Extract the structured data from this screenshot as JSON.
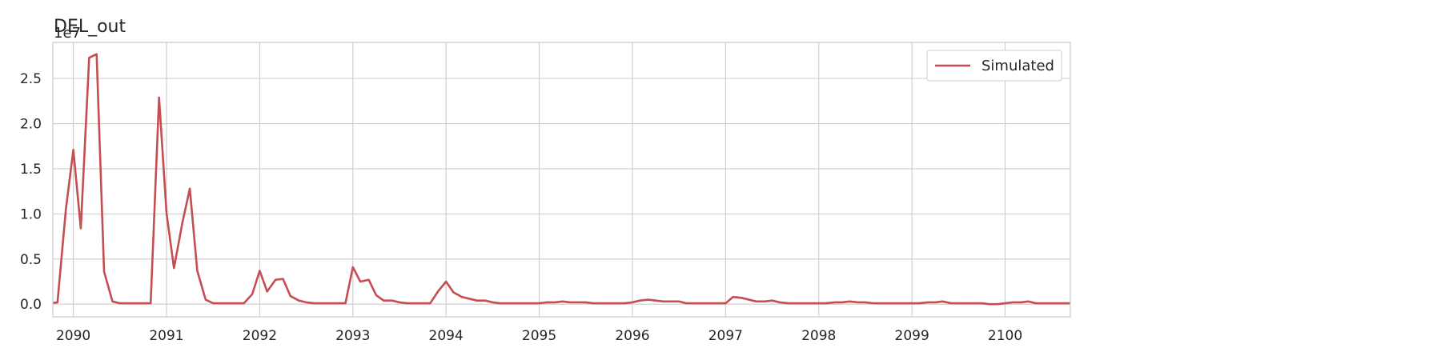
{
  "chart_data": {
    "type": "line",
    "title": "DEL_out",
    "offset_text": "1e7",
    "xlabel": "",
    "ylabel": "",
    "grid": true,
    "legend_position": "top-right",
    "xlim": [
      2089.78,
      2100.7
    ],
    "ylim": [
      -0.14,
      2.9
    ],
    "x_ticks": [
      2090,
      2091,
      2092,
      2093,
      2094,
      2095,
      2096,
      2097,
      2098,
      2099,
      2100
    ],
    "x_tick_labels": [
      "2090",
      "2091",
      "2092",
      "2093",
      "2094",
      "2095",
      "2096",
      "2097",
      "2098",
      "2099",
      "2100"
    ],
    "y_ticks": [
      0.0,
      0.5,
      1.0,
      1.5,
      2.0,
      2.5
    ],
    "y_tick_labels": [
      "0.0",
      "0.5",
      "1.0",
      "1.5",
      "2.0",
      "2.5"
    ],
    "series": [
      {
        "name": "Simulated",
        "color": "#c44e52",
        "x": [
          2089.75,
          2089.83,
          2089.92,
          2090.0,
          2090.08,
          2090.17,
          2090.25,
          2090.33,
          2090.42,
          2090.5,
          2090.58,
          2090.67,
          2090.75,
          2090.83,
          2090.92,
          2091.0,
          2091.08,
          2091.17,
          2091.25,
          2091.33,
          2091.42,
          2091.5,
          2091.58,
          2091.67,
          2091.75,
          2091.83,
          2091.92,
          2092.0,
          2092.08,
          2092.17,
          2092.25,
          2092.33,
          2092.42,
          2092.5,
          2092.58,
          2092.67,
          2092.75,
          2092.83,
          2092.92,
          2093.0,
          2093.08,
          2093.17,
          2093.25,
          2093.33,
          2093.42,
          2093.5,
          2093.58,
          2093.67,
          2093.75,
          2093.83,
          2093.92,
          2094.0,
          2094.08,
          2094.17,
          2094.25,
          2094.33,
          2094.42,
          2094.5,
          2094.58,
          2094.67,
          2094.75,
          2094.83,
          2094.92,
          2095.0,
          2095.08,
          2095.17,
          2095.25,
          2095.33,
          2095.42,
          2095.5,
          2095.58,
          2095.67,
          2095.75,
          2095.83,
          2095.92,
          2096.0,
          2096.08,
          2096.17,
          2096.25,
          2096.33,
          2096.42,
          2096.5,
          2096.58,
          2096.67,
          2096.75,
          2096.83,
          2096.92,
          2097.0,
          2097.08,
          2097.17,
          2097.25,
          2097.33,
          2097.42,
          2097.5,
          2097.58,
          2097.67,
          2097.75,
          2097.83,
          2097.92,
          2098.0,
          2098.08,
          2098.17,
          2098.25,
          2098.33,
          2098.42,
          2098.5,
          2098.58,
          2098.67,
          2098.75,
          2098.83,
          2098.92,
          2099.0,
          2099.08,
          2099.17,
          2099.25,
          2099.33,
          2099.42,
          2099.5,
          2099.58,
          2099.67,
          2099.75,
          2099.83,
          2099.92,
          2100.0,
          2100.08,
          2100.17,
          2100.25,
          2100.33,
          2100.42,
          2100.5,
          2100.58,
          2100.67,
          2100.75
        ],
        "values": [
          0.01,
          0.02,
          1.05,
          1.71,
          0.84,
          2.73,
          2.77,
          0.36,
          0.03,
          0.01,
          0.01,
          0.01,
          0.01,
          0.01,
          2.29,
          1.01,
          0.4,
          0.9,
          1.28,
          0.37,
          0.05,
          0.01,
          0.01,
          0.01,
          0.01,
          0.01,
          0.11,
          0.37,
          0.14,
          0.27,
          0.28,
          0.09,
          0.04,
          0.02,
          0.01,
          0.01,
          0.01,
          0.01,
          0.01,
          0.41,
          0.25,
          0.27,
          0.1,
          0.04,
          0.04,
          0.02,
          0.01,
          0.01,
          0.01,
          0.01,
          0.15,
          0.25,
          0.13,
          0.08,
          0.06,
          0.04,
          0.04,
          0.02,
          0.01,
          0.01,
          0.01,
          0.01,
          0.01,
          0.01,
          0.02,
          0.02,
          0.03,
          0.02,
          0.02,
          0.02,
          0.01,
          0.01,
          0.01,
          0.01,
          0.01,
          0.02,
          0.04,
          0.05,
          0.04,
          0.03,
          0.03,
          0.03,
          0.01,
          0.01,
          0.01,
          0.01,
          0.01,
          0.01,
          0.08,
          0.07,
          0.05,
          0.03,
          0.03,
          0.04,
          0.02,
          0.01,
          0.01,
          0.01,
          0.01,
          0.01,
          0.01,
          0.02,
          0.02,
          0.03,
          0.02,
          0.02,
          0.01,
          0.01,
          0.01,
          0.01,
          0.01,
          0.01,
          0.01,
          0.02,
          0.02,
          0.03,
          0.01,
          0.01,
          0.01,
          0.01,
          0.01,
          0.0,
          0.0,
          0.01,
          0.02,
          0.02,
          0.03,
          0.01,
          0.01,
          0.01,
          0.01,
          0.01,
          0.01
        ]
      }
    ]
  }
}
